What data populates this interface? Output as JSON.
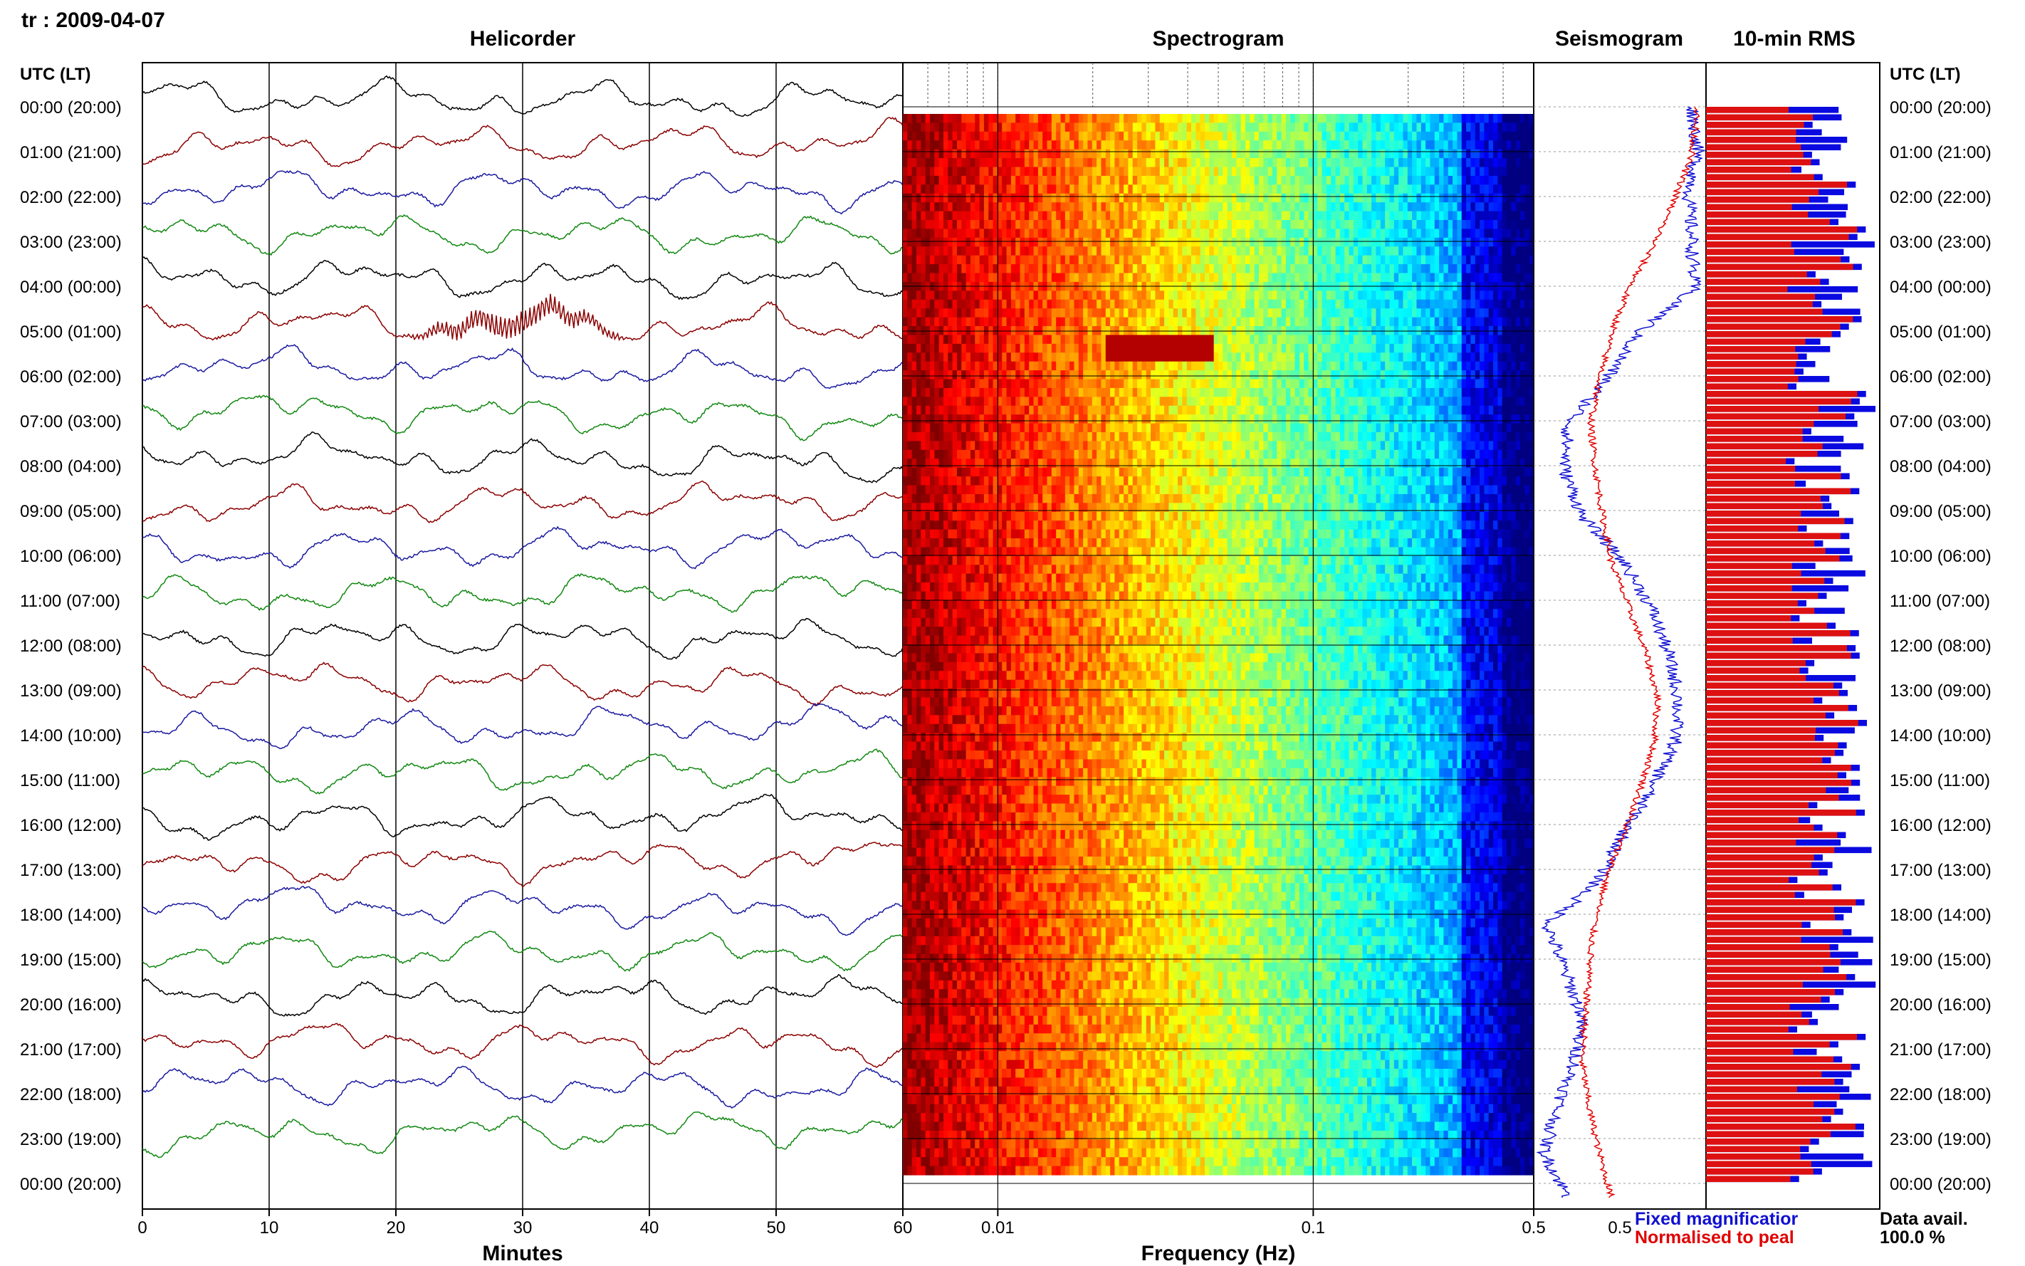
{
  "header": {
    "station_date": "tr : 2009-04-07"
  },
  "panels": {
    "helicorder": "Helicorder",
    "spectrogram": "Spectrogram",
    "seismogram": "Seismogram",
    "rms": "10-min RMS"
  },
  "axis_headers": {
    "left": "UTC (LT)",
    "right": "UTC (LT)"
  },
  "hours": [
    "00:00 (20:00)",
    "01:00 (21:00)",
    "02:00 (22:00)",
    "03:00 (23:00)",
    "04:00 (00:00)",
    "05:00 (01:00)",
    "06:00 (02:00)",
    "07:00 (03:00)",
    "08:00 (04:00)",
    "09:00 (05:00)",
    "10:00 (06:00)",
    "11:00 (07:00)",
    "12:00 (08:00)",
    "13:00 (09:00)",
    "14:00 (10:00)",
    "15:00 (11:00)",
    "16:00 (12:00)",
    "17:00 (13:00)",
    "18:00 (14:00)",
    "19:00 (15:00)",
    "20:00 (16:00)",
    "21:00 (17:00)",
    "22:00 (18:00)",
    "23:00 (19:00)",
    "00:00 (20:00)"
  ],
  "legend": {
    "fixed": "Fixed magnificatior",
    "normalised": "Normalised to peal",
    "data_avail_label": "Data avail.",
    "data_avail_value": "100.0 %"
  },
  "colors": {
    "trace_cycle": [
      "#000000",
      "#8b0000",
      "#1a1aa0",
      "#118811"
    ],
    "fixed": "#1010d0",
    "normalised": "#e00000",
    "rms_red": "#dd1111",
    "rms_blue": "#0a0ae0"
  },
  "chart_data": [
    {
      "type": "line",
      "title": "Helicorder",
      "xlabel": "Minutes",
      "xlim": [
        0,
        60
      ],
      "x_ticks": [
        "0",
        "10",
        "20",
        "30",
        "40",
        "50",
        "60"
      ],
      "rows": 24,
      "event_row_index": 5,
      "event_minutes": [
        20,
        39
      ]
    },
    {
      "type": "heatmap",
      "title": "Spectrogram",
      "xlabel": "Frequency (Hz)",
      "x_scale": "log",
      "xlim": [
        0.005,
        0.5
      ],
      "x_ticks": [
        "0.01",
        "0.1",
        "0.5"
      ],
      "rows": 24,
      "event_frequency_hz": [
        0.022,
        0.048
      ],
      "event_hour": "05:00"
    },
    {
      "type": "line",
      "title": "Seismogram",
      "x_ticks": [
        "0.5"
      ],
      "series": [
        {
          "name": "Fixed magnificatior",
          "values": [
            0.92,
            0.95,
            0.9,
            0.92,
            0.93,
            0.6,
            0.42,
            0.2,
            0.18,
            0.28,
            0.52,
            0.68,
            0.78,
            0.84,
            0.82,
            0.68,
            0.52,
            0.38,
            0.08,
            0.18,
            0.28,
            0.24,
            0.14,
            0.06,
            0.2
          ]
        },
        {
          "name": "Normalised to peal",
          "values": [
            0.95,
            0.92,
            0.82,
            0.7,
            0.55,
            0.45,
            0.38,
            0.33,
            0.36,
            0.4,
            0.45,
            0.55,
            0.65,
            0.72,
            0.7,
            0.62,
            0.52,
            0.42,
            0.35,
            0.32,
            0.3,
            0.28,
            0.32,
            0.38,
            0.45
          ]
        }
      ]
    },
    {
      "type": "bar",
      "title": "10-min RMS",
      "orientation": "horizontal",
      "bins": 144,
      "red_level_range": [
        0.45,
        0.88
      ],
      "blue_level_range": [
        0.35,
        0.98
      ],
      "data_availability_percent": 100.0
    }
  ]
}
